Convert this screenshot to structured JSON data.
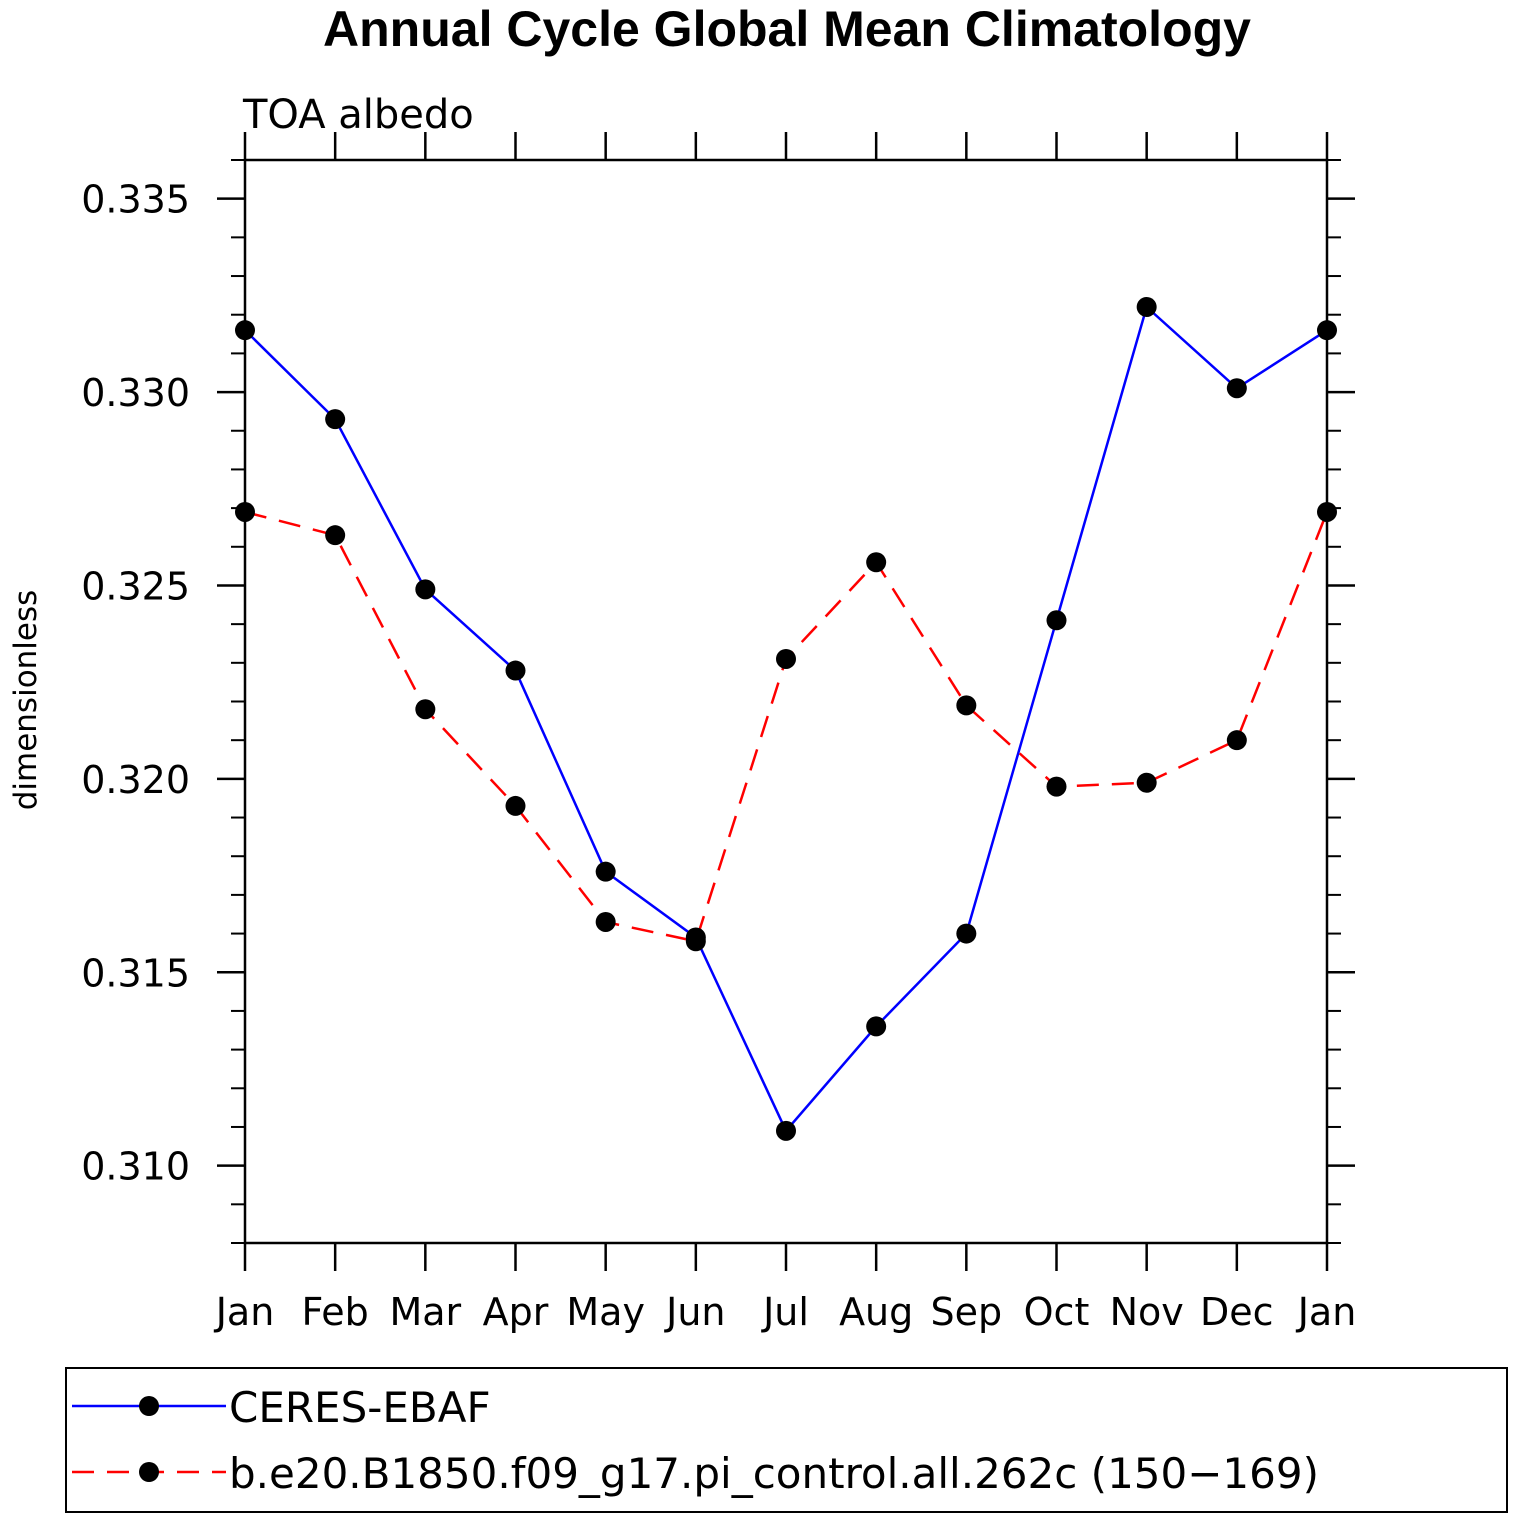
{
  "chart_data": {
    "type": "line",
    "title": "Annual Cycle Global Mean Climatology",
    "subtitle": "TOA albedo",
    "xlabel": "",
    "ylabel": "dimensionless",
    "categories": [
      "Jan",
      "Feb",
      "Mar",
      "Apr",
      "May",
      "Jun",
      "Jul",
      "Aug",
      "Sep",
      "Oct",
      "Nov",
      "Dec",
      "Jan"
    ],
    "ylim": [
      0.308,
      0.336
    ],
    "yticks": [
      {
        "value": 0.31,
        "label": "0.310"
      },
      {
        "value": 0.315,
        "label": "0.315"
      },
      {
        "value": 0.32,
        "label": "0.320"
      },
      {
        "value": 0.325,
        "label": "0.325"
      },
      {
        "value": 0.33,
        "label": "0.330"
      },
      {
        "value": 0.335,
        "label": "0.335"
      }
    ],
    "yminor_step": 0.001,
    "grid": false,
    "legend_position": "bottom",
    "series": [
      {
        "name": "CERES-EBAF",
        "color": "#0000ff",
        "dash": "solid",
        "values": [
          0.3316,
          0.3293,
          0.3249,
          0.3228,
          0.3176,
          0.3159,
          0.3109,
          0.3136,
          0.316,
          0.3241,
          0.3322,
          0.3301,
          0.3316
        ]
      },
      {
        "name": "b.e20.B1850.f09_g17.pi_control.all.262c (150−169)",
        "color": "#ff0000",
        "dash": "dashed",
        "values": [
          0.3269,
          0.3263,
          0.3218,
          0.3193,
          0.3163,
          0.3158,
          0.3231,
          0.3256,
          0.3219,
          0.3198,
          0.3199,
          0.321,
          0.3269
        ]
      }
    ]
  }
}
